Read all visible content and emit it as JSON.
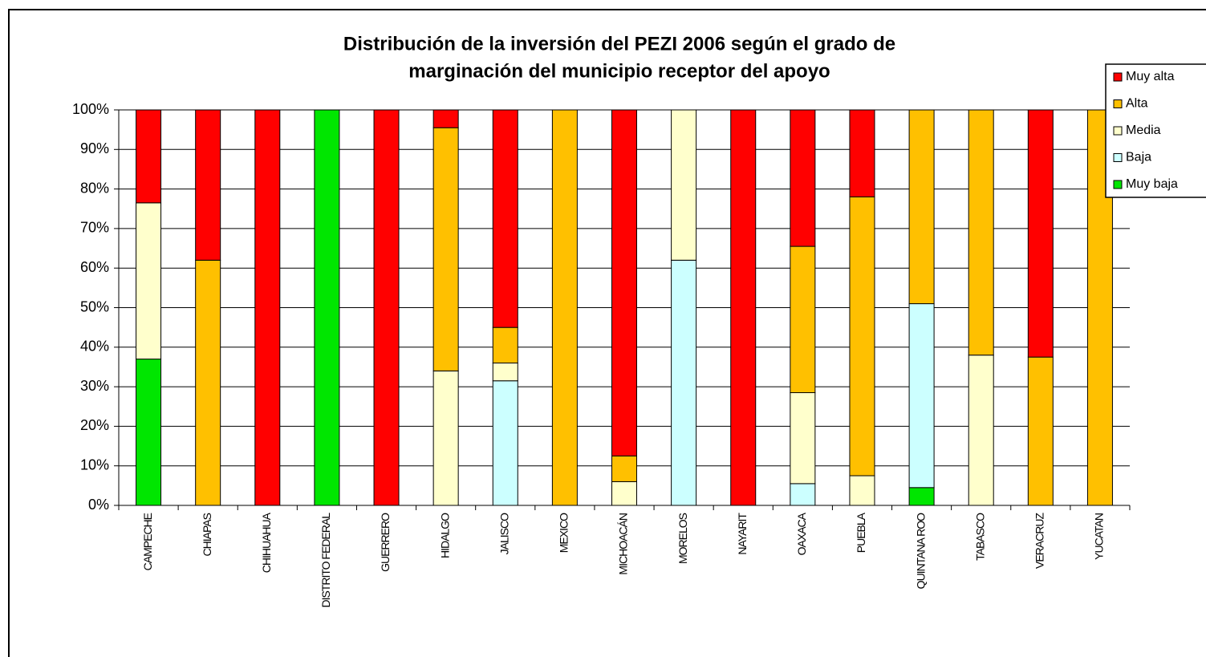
{
  "chart_data": {
    "type": "stacked_bar",
    "title": "Distribución de la inversión del PEZI 2006 según el grado de marginación del municipio receptor del apoyo",
    "title_lines": [
      "Distribución de la inversión del PEZI 2006 según el grado de",
      "marginación del municipio receptor del apoyo"
    ],
    "categories": [
      "CAMPECHE",
      "CHIAPAS",
      "CHIHUAHUA",
      "DISTRITO FEDERAL",
      "GUERRERO",
      "HIDALGO",
      "JALISCO",
      "MEXICO",
      "MICHOACÁN",
      "MORELOS",
      "NAYARIT",
      "OAXACA",
      "PUEBLA",
      "QUINTANA ROO",
      "TABASCO",
      "VERACRUZ",
      "YUCATAN"
    ],
    "series": [
      {
        "name": "Muy baja",
        "color": "#00e600",
        "values": [
          37,
          0,
          0,
          100,
          0,
          0,
          0,
          0,
          0,
          0,
          0,
          0,
          0,
          4.5,
          0,
          0,
          0
        ]
      },
      {
        "name": "Baja",
        "color": "#ccffff",
        "values": [
          0,
          0,
          0,
          0,
          0,
          0,
          31.5,
          0,
          0,
          62,
          0,
          5.5,
          0,
          46.5,
          0,
          0,
          0
        ]
      },
      {
        "name": "Media",
        "color": "#ffffcc",
        "values": [
          39.5,
          0,
          0,
          0,
          0,
          34,
          4.5,
          0,
          6,
          38,
          0,
          23,
          7.5,
          0,
          38,
          0,
          0
        ]
      },
      {
        "name": "Alta",
        "color": "#ffc000",
        "values": [
          0,
          62,
          0,
          0,
          0,
          61.5,
          9,
          100,
          6.5,
          0,
          0,
          37,
          70.5,
          49,
          62,
          37.5,
          100
        ]
      },
      {
        "name": "Muy alta",
        "color": "#ff0000",
        "values": [
          23.5,
          38,
          100,
          0,
          100,
          4.5,
          55,
          0,
          87.5,
          0,
          100,
          34.5,
          22,
          0,
          0,
          62.5,
          0
        ]
      }
    ],
    "ylim": [
      0,
      100
    ],
    "yticks": [
      {
        "value": 0,
        "label": "0%"
      },
      {
        "value": 10,
        "label": "10%"
      },
      {
        "value": 20,
        "label": "20%"
      },
      {
        "value": 30,
        "label": "30%"
      },
      {
        "value": 40,
        "label": "40%"
      },
      {
        "value": 50,
        "label": "50%"
      },
      {
        "value": 60,
        "label": "60%"
      },
      {
        "value": 70,
        "label": "70%"
      },
      {
        "value": 80,
        "label": "80%"
      },
      {
        "value": 90,
        "label": "90%"
      },
      {
        "value": 100,
        "label": "100%"
      }
    ],
    "grid": true,
    "legend": "top-right"
  }
}
